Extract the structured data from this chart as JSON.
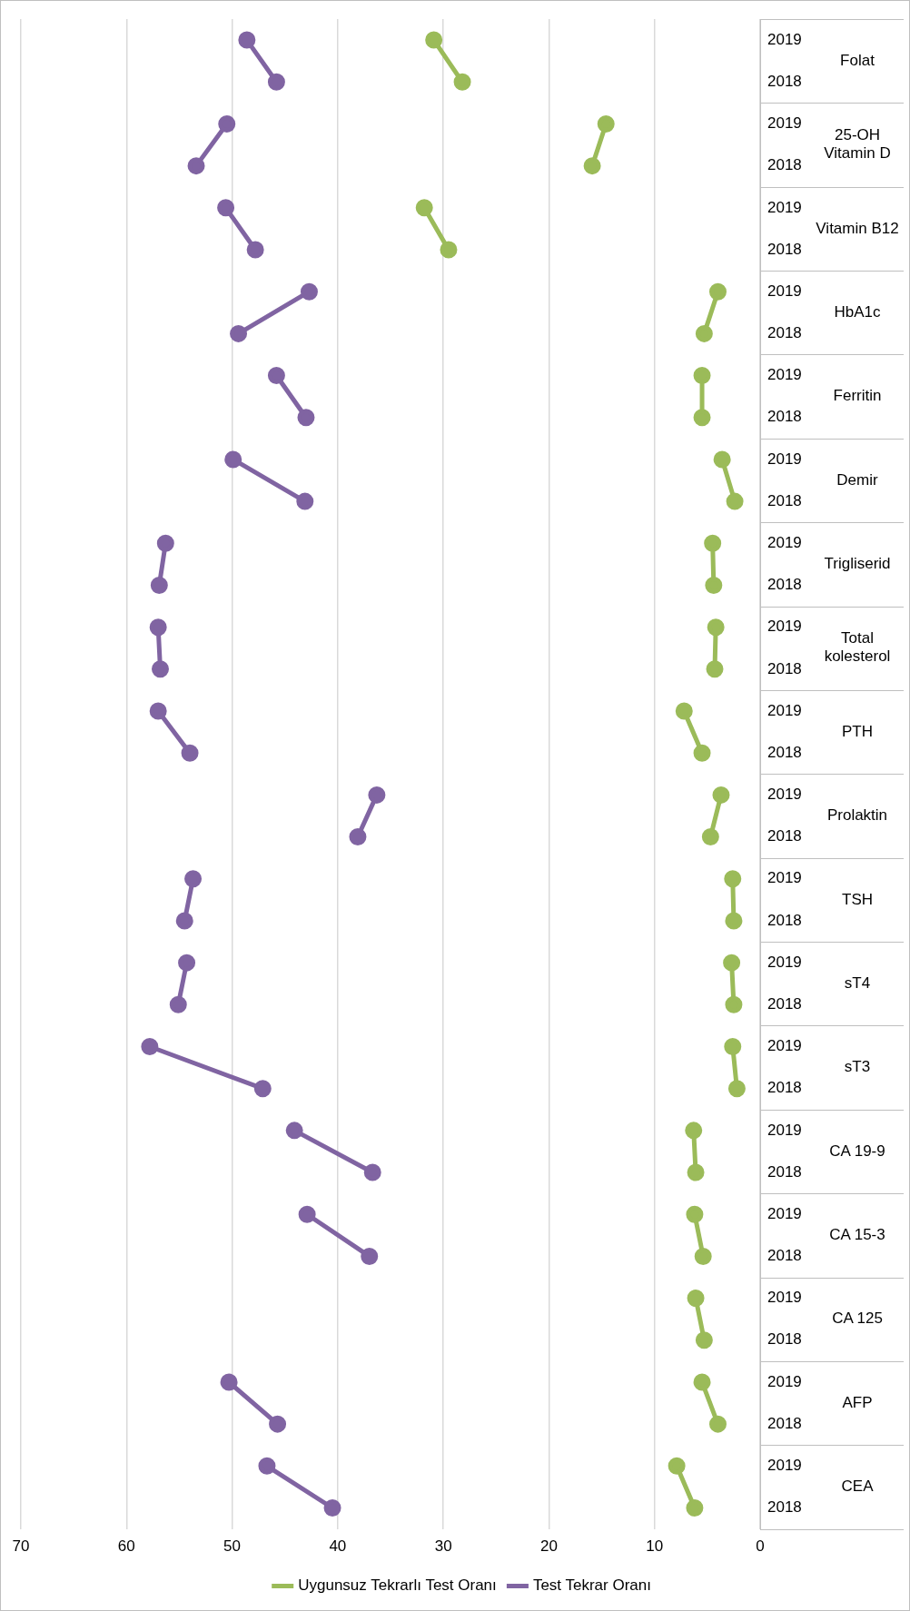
{
  "chart_data": {
    "type": "line",
    "orientation": "horizontal",
    "categories": [
      "2019",
      "2018",
      "2019",
      "2018",
      "2019",
      "2018",
      "2019",
      "2018",
      "2019",
      "2018",
      "2019",
      "2018",
      "2019",
      "2018",
      "2019",
      "2018",
      "2019",
      "2018",
      "2019",
      "2018",
      "2019",
      "2018",
      "2019",
      "2018",
      "2019",
      "2018",
      "2019",
      "2018",
      "2019",
      "2018",
      "2019",
      "2018",
      "2019",
      "2018",
      "2019",
      "2018"
    ],
    "annotations": [
      "Folat",
      "25-OH Vitamin D",
      "Vitamin B12",
      "HbA1c",
      "Ferritin",
      "Demir",
      "Trigliserid",
      "Total kolesterol",
      "PTH",
      "Prolaktin",
      "TSH",
      "sT4",
      "sT3",
      "CA 19-9",
      "CA 15-3",
      "CA 125",
      "AFP",
      "CEA"
    ],
    "series": [
      {
        "name": "Uygunsuz Tekrarlı Test Oranı",
        "color": "#9bbb59",
        "values": [
          30.9,
          28.2,
          14.6,
          15.9,
          31.8,
          29.5,
          4.0,
          5.3,
          5.5,
          5.5,
          3.6,
          2.4,
          4.5,
          4.4,
          4.2,
          4.3,
          7.2,
          5.5,
          3.7,
          4.7,
          2.6,
          2.5,
          2.7,
          2.5,
          2.6,
          2.2,
          6.3,
          6.1,
          6.2,
          5.4,
          6.1,
          5.3,
          5.5,
          4.0,
          7.9,
          6.2
        ]
      },
      {
        "name": "Test Tekrar Oranı",
        "color": "#8064a2",
        "values": [
          48.6,
          45.8,
          50.5,
          53.4,
          50.6,
          47.8,
          42.7,
          49.4,
          45.8,
          43.0,
          49.9,
          43.1,
          56.3,
          56.9,
          57.0,
          56.8,
          57.0,
          54.0,
          36.3,
          38.1,
          53.7,
          54.5,
          54.3,
          55.1,
          57.8,
          47.1,
          44.1,
          36.7,
          42.9,
          37.0,
          null,
          null,
          50.3,
          45.7,
          46.7,
          40.5
        ]
      }
    ],
    "xlim": [
      70,
      0
    ],
    "xticks": [
      70,
      60,
      50,
      40,
      30,
      20,
      10,
      0
    ],
    "grid": "x",
    "legend": "bottom",
    "marker": "circle",
    "line_style": "solid"
  }
}
